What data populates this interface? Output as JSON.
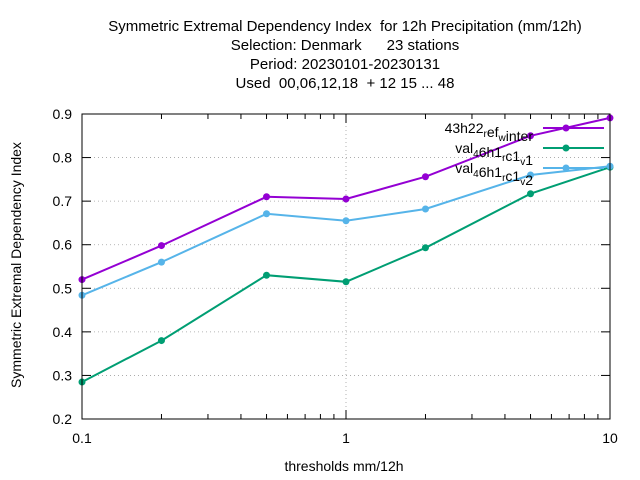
{
  "title_lines": [
    "Symmetric Extremal Dependency Index  for 12h Precipitation (mm/12h)",
    "Selection: Denmark      23 stations",
    "Period: 20230101-20230131",
    "Used  00,06,12,18  + 12 15 ... 48"
  ],
  "chart_data": {
    "type": "line",
    "title": "Symmetric Extremal Dependency Index  for 12h Precipitation (mm/12h)",
    "xlabel": "thresholds mm/12h",
    "ylabel": "Symmetric Extremal Dependency Index",
    "xscale": "log",
    "xlim": [
      0.1,
      10
    ],
    "ylim": [
      0.2,
      0.9
    ],
    "xticks": [
      0.1,
      1,
      10
    ],
    "xtick_labels": [
      "0.1",
      "1",
      "10"
    ],
    "yticks": [
      0.2,
      0.3,
      0.4,
      0.5,
      0.6,
      0.7,
      0.8,
      0.9
    ],
    "ytick_labels": [
      "0.2",
      "0.3",
      "0.4",
      "0.5",
      "0.6",
      "0.7",
      "0.8",
      "0.9"
    ],
    "grid": true,
    "legend_position": "top-right",
    "x": [
      0.1,
      0.2,
      0.5,
      1,
      2,
      5,
      10
    ],
    "series": [
      {
        "name": "43h22_ref_winter",
        "color": "#9400d3",
        "values": [
          0.52,
          0.598,
          0.71,
          0.705,
          0.756,
          0.85,
          0.891
        ]
      },
      {
        "name": "val_46h1_rc1_v1",
        "color": "#009e73",
        "values": [
          0.285,
          0.38,
          0.53,
          0.515,
          0.593,
          0.717,
          0.778
        ]
      },
      {
        "name": "val_46h1_rc1_v2",
        "color": "#56b4e9",
        "values": [
          0.484,
          0.56,
          0.671,
          0.655,
          0.682,
          0.76,
          0.78
        ]
      }
    ]
  }
}
